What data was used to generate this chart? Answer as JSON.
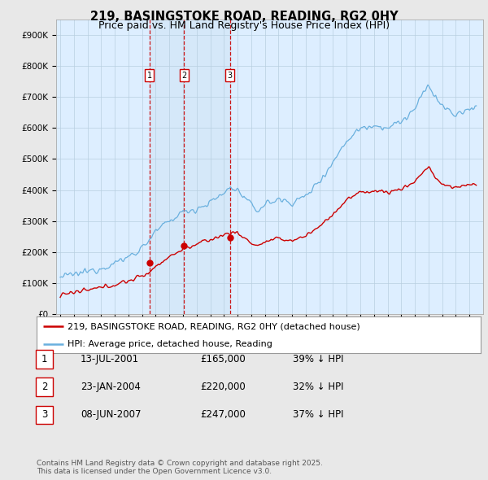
{
  "title": "219, BASINGSTOKE ROAD, READING, RG2 0HY",
  "subtitle": "Price paid vs. HM Land Registry's House Price Index (HPI)",
  "ylim": [
    0,
    950000
  ],
  "yticks": [
    0,
    100000,
    200000,
    300000,
    400000,
    500000,
    600000,
    700000,
    800000,
    900000
  ],
  "ytick_labels": [
    "£0",
    "£100K",
    "£200K",
    "£300K",
    "£400K",
    "£500K",
    "£600K",
    "£700K",
    "£800K",
    "£900K"
  ],
  "background_color": "#e8e8e8",
  "plot_bg_color": "#ddeeff",
  "hpi_color": "#6ab0de",
  "price_color": "#cc0000",
  "vline_color": "#cc0000",
  "shade_color": "#c8ddf0",
  "purchases": [
    {
      "date_num": 2001.54,
      "price": 165000,
      "label": "1"
    },
    {
      "date_num": 2004.07,
      "price": 220000,
      "label": "2"
    },
    {
      "date_num": 2007.44,
      "price": 247000,
      "label": "3"
    }
  ],
  "legend_entries": [
    "219, BASINGSTOKE ROAD, READING, RG2 0HY (detached house)",
    "HPI: Average price, detached house, Reading"
  ],
  "table_rows": [
    [
      "1",
      "13-JUL-2001",
      "£165,000",
      "39% ↓ HPI"
    ],
    [
      "2",
      "23-JAN-2004",
      "£220,000",
      "32% ↓ HPI"
    ],
    [
      "3",
      "08-JUN-2007",
      "£247,000",
      "37% ↓ HPI"
    ]
  ],
  "footnote": "Contains HM Land Registry data © Crown copyright and database right 2025.\nThis data is licensed under the Open Government Licence v3.0.",
  "title_fontsize": 10.5,
  "subtitle_fontsize": 9,
  "tick_fontsize": 7.5,
  "legend_fontsize": 8,
  "table_fontsize": 8.5,
  "footnote_fontsize": 6.5,
  "xlim_left": 1994.7,
  "xlim_right": 2026.0
}
